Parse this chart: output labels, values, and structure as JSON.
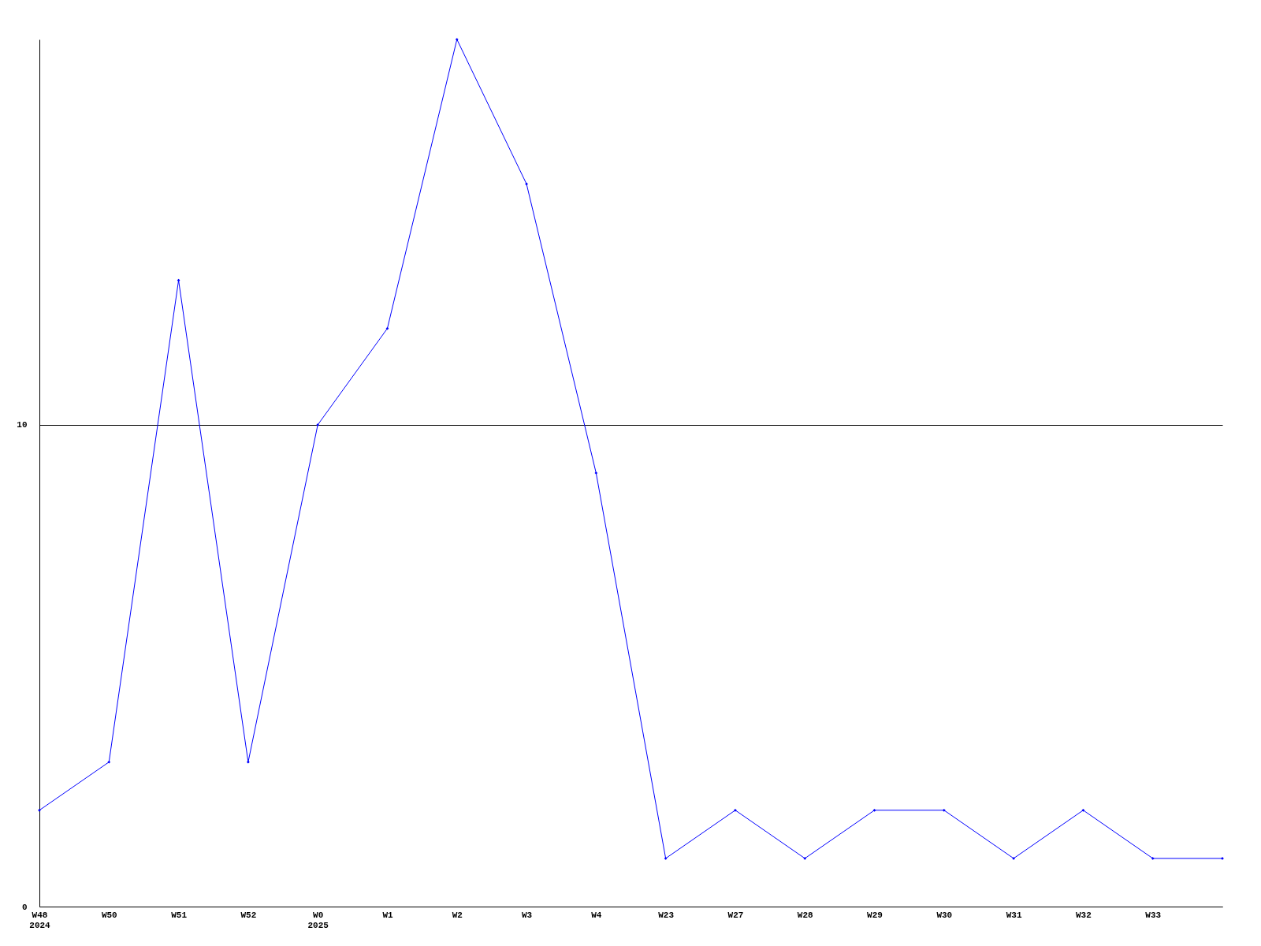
{
  "chart_data": {
    "type": "line",
    "categories": [
      "W48\n2024",
      "W50",
      "W51",
      "W52",
      "W0\n2025",
      "W1",
      "W2",
      "W3",
      "W4",
      "W23",
      "W27",
      "W28",
      "W29",
      "W30",
      "W31",
      "W32",
      "W33",
      null
    ],
    "series": [
      {
        "color": "#0000ff",
        "values": [
          2,
          3,
          13,
          3,
          10,
          12,
          18,
          15,
          9,
          1,
          2,
          1,
          2,
          2,
          1,
          2,
          1,
          1
        ]
      }
    ],
    "ylim": [
      0,
      18
    ],
    "yticks": [
      0,
      10
    ],
    "grid": "y",
    "marker": "diamond",
    "line_style": "solid"
  }
}
